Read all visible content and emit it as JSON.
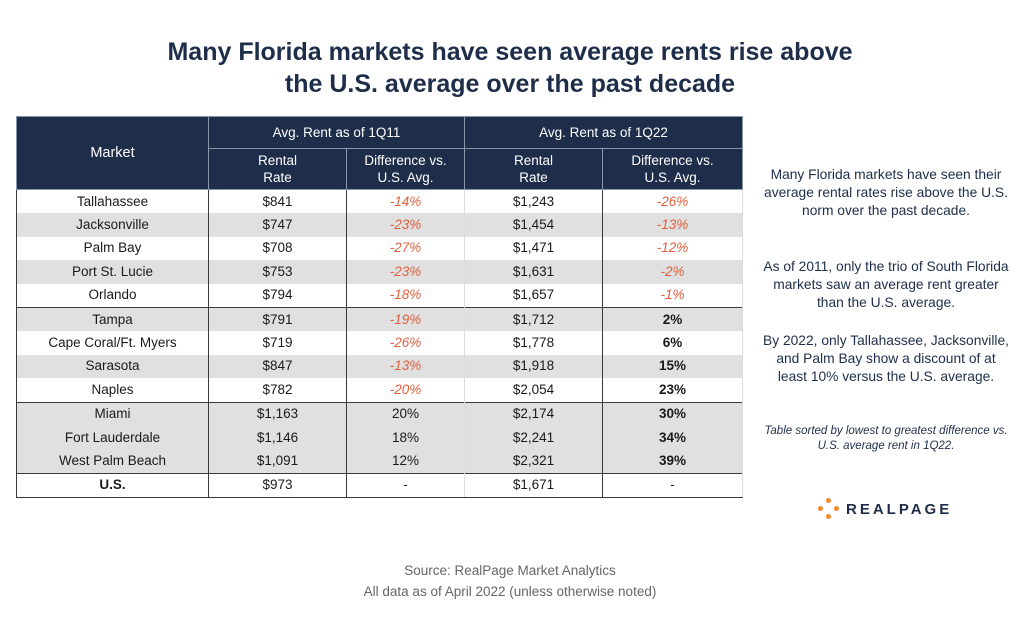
{
  "title": {
    "line1": "Many Florida markets have seen average rents rise above",
    "line2": "the U.S. average over the past decade"
  },
  "table": {
    "header": {
      "market": "Market",
      "group1": "Avg. Rent as of 1Q11",
      "group2": "Avg. Rent as of 1Q22",
      "rental_rate_l1": "Rental",
      "rental_rate_l2": "Rate",
      "diff_l1": "Difference vs.",
      "diff_l2": "U.S. Avg."
    }
  },
  "chart_data": {
    "type": "table",
    "title": "Many Florida markets have seen average rents rise above the U.S. average over the past decade",
    "columns": [
      "Market",
      "Avg. Rent as of 1Q11 Rental Rate",
      "Avg. Rent as of 1Q11 Difference vs. U.S. Avg.",
      "Avg. Rent as of 1Q22 Rental Rate",
      "Avg. Rent as of 1Q22 Difference vs. U.S. Avg."
    ],
    "rows": [
      {
        "market": "Tallahassee",
        "rent_1q11": "$841",
        "diff_1q11": "-14%",
        "rent_1q22": "$1,243",
        "diff_1q22": "-26%"
      },
      {
        "market": "Jacksonville",
        "rent_1q11": "$747",
        "diff_1q11": "-23%",
        "rent_1q22": "$1,454",
        "diff_1q22": "-13%"
      },
      {
        "market": "Palm Bay",
        "rent_1q11": "$708",
        "diff_1q11": "-27%",
        "rent_1q22": "$1,471",
        "diff_1q22": "-12%"
      },
      {
        "market": "Port St. Lucie",
        "rent_1q11": "$753",
        "diff_1q11": "-23%",
        "rent_1q22": "$1,631",
        "diff_1q22": "-2%"
      },
      {
        "market": "Orlando",
        "rent_1q11": "$794",
        "diff_1q11": "-18%",
        "rent_1q22": "$1,657",
        "diff_1q22": "-1%"
      },
      {
        "market": "Tampa",
        "rent_1q11": "$791",
        "diff_1q11": "-19%",
        "rent_1q22": "$1,712",
        "diff_1q22": "2%"
      },
      {
        "market": "Cape Coral/Ft. Myers",
        "rent_1q11": "$719",
        "diff_1q11": "-26%",
        "rent_1q22": "$1,778",
        "diff_1q22": "6%"
      },
      {
        "market": "Sarasota",
        "rent_1q11": "$847",
        "diff_1q11": "-13%",
        "rent_1q22": "$1,918",
        "diff_1q22": "15%"
      },
      {
        "market": "Naples",
        "rent_1q11": "$782",
        "diff_1q11": "-20%",
        "rent_1q22": "$2,054",
        "diff_1q22": "23%"
      },
      {
        "market": "Miami",
        "rent_1q11": "$1,163",
        "diff_1q11": "20%",
        "rent_1q22": "$2,174",
        "diff_1q22": "30%"
      },
      {
        "market": "Fort Lauderdale",
        "rent_1q11": "$1,146",
        "diff_1q11": "18%",
        "rent_1q22": "$2,241",
        "diff_1q22": "34%"
      },
      {
        "market": "West Palm Beach",
        "rent_1q11": "$1,091",
        "diff_1q11": "12%",
        "rent_1q22": "$2,321",
        "diff_1q22": "39%"
      },
      {
        "market": "U.S.",
        "rent_1q11": "$973",
        "diff_1q11": "-",
        "rent_1q22": "$1,671",
        "diff_1q22": "-"
      }
    ]
  },
  "side": {
    "para1": "Many Florida markets have seen their average rental rates rise above the U.S. norm over the past decade.",
    "para2": "As of 2011, only the trio of South Florida markets saw an average rent greater than the U.S. average.",
    "para3": "By 2022, only Tallahassee, Jacksonville, and Palm Bay show a discount of at least 10% versus the U.S. average.",
    "note": "Table sorted by lowest to greatest difference vs. U.S. average rent in 1Q22."
  },
  "logo": {
    "text": "REALPAGE",
    "color": "#f08a2c"
  },
  "source": {
    "line1": "Source: RealPage Market Analytics",
    "line2": "All data as of April 2022 (unless otherwise noted)"
  },
  "colors": {
    "header_bg": "#1e2e4a",
    "negative": "#e0603e",
    "shade": "#e0e0e0"
  }
}
